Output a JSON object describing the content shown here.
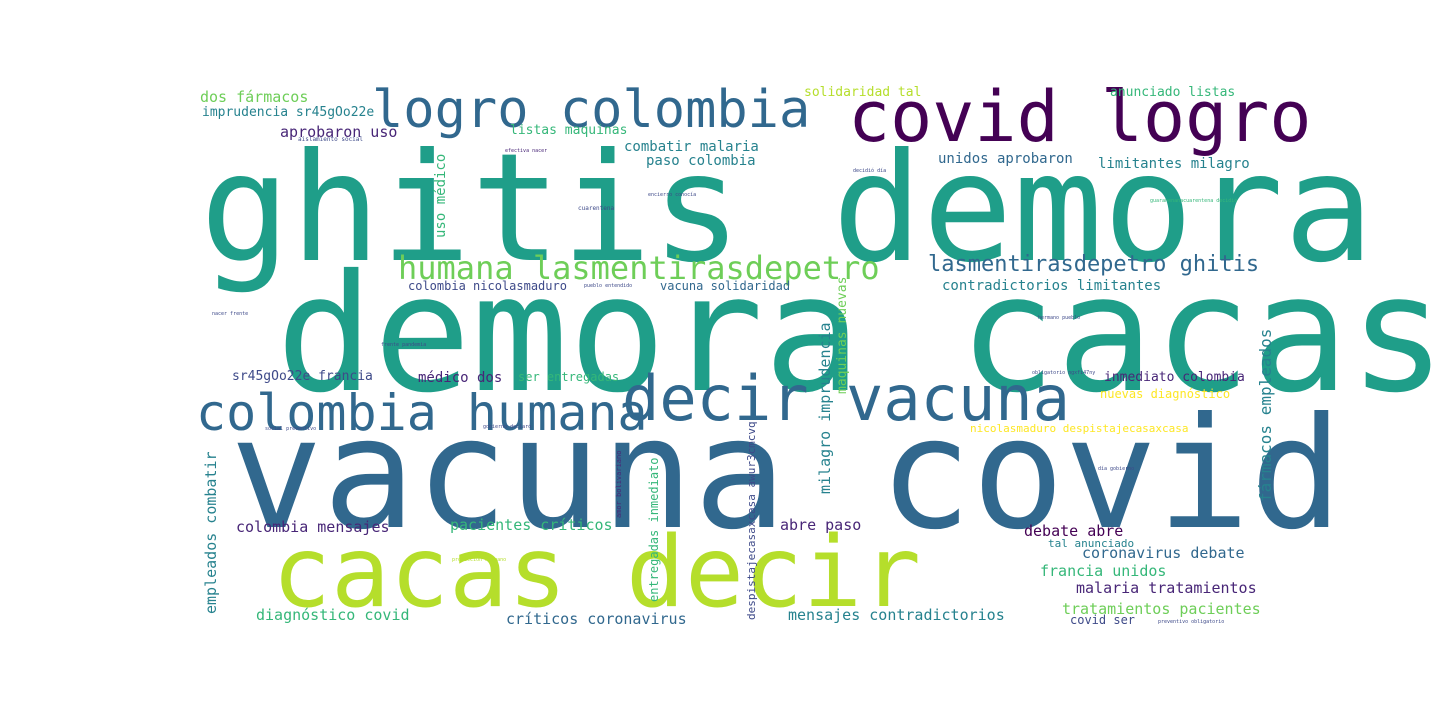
{
  "words": [
    "ghitis demora",
    "demora cacas",
    "vacuna covid",
    "cacas decir",
    "covid logro",
    "logro colombia",
    "decir vacuna",
    "colombia humana",
    "humana lasmentirasdepetro",
    "lasmentirasdepetro ghitis",
    "dos fármacos",
    "imprudencia sr45gOo22e",
    "aprobaron uso",
    "listas maquinas",
    "combatir malaria",
    "paso colombia",
    "unidos aprobaron",
    "limitantes milagro",
    "solidaridad tal",
    "anunciado listas",
    "uso médico",
    "colombia nicolasmaduro",
    "vacuna solidaridad",
    "contradictorios limitantes",
    "milagro imprudencia",
    "maquinas nuevas",
    "pacientes críticos",
    "sr45gOo22e francia",
    "médico dos",
    "ser entregadas",
    "inmediato colombia",
    "nuevas diagnóstico",
    "fármacos empleados",
    "empleados combatir",
    "colombia mensajes",
    "entregadas inmediato",
    "despistajecasaxcasa awur3cmcvq",
    "nicolasmaduro despistajecasaxcasa",
    "abre paso",
    "debate abre",
    "tal anunciado",
    "coronavirus debate",
    "francia unidos",
    "malaria tratamientos",
    "tratamientos pacientes",
    "diagnóstico covid",
    "críticos coronavirus",
    "mensajes contradictorios",
    "covid ser",
    "aislamiento social",
    "efectiva nacer",
    "encierro conocía",
    "cuarentena",
    "decidió día",
    "guaranenanacuarentena decidió",
    "frente pandemia",
    "social preventivo",
    "gobierno declaró",
    "amor bolivariano",
    "obligatorio ngxfi47ny",
    "hermano pueblo",
    "día gobierno",
    "preventivo obligatorio",
    "protección hermano",
    "nacer frente",
    "pueblo entendido"
  ]
}
